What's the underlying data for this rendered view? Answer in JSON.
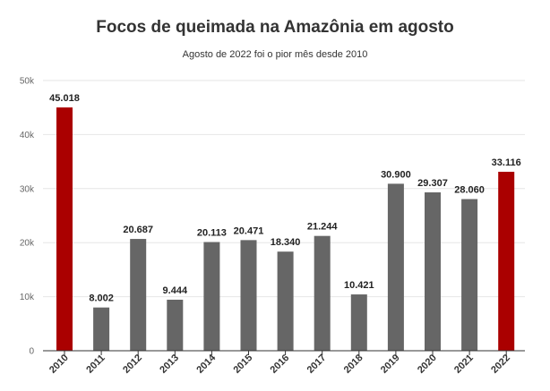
{
  "title": "Focos de queimada na Amazônia em agosto",
  "subtitle": "Agosto de 2022 foi o pior mês desde 2010",
  "chart_data": {
    "type": "bar",
    "title": "Focos de queimada na Amazônia em agosto",
    "subtitle": "Agosto de 2022 foi o pior mês desde 2010",
    "xlabel": "",
    "ylabel": "",
    "ylim": [
      0,
      50000
    ],
    "yticks": [
      {
        "value": 0,
        "label": "0"
      },
      {
        "value": 10000,
        "label": "10k"
      },
      {
        "value": 20000,
        "label": "20k"
      },
      {
        "value": 30000,
        "label": "30k"
      },
      {
        "value": 40000,
        "label": "40k"
      },
      {
        "value": 50000,
        "label": "50k"
      }
    ],
    "categories": [
      "2010",
      "2011",
      "2012",
      "2013",
      "2014",
      "2015",
      "2016",
      "2017",
      "2018",
      "2019",
      "2020",
      "2021",
      "2022"
    ],
    "values": [
      45018,
      8002,
      20687,
      9444,
      20113,
      20471,
      18340,
      21244,
      10421,
      30900,
      29307,
      28060,
      33116
    ],
    "value_labels": [
      "45.018",
      "8.002",
      "20.687",
      "9.444",
      "20.113",
      "20.471",
      "18.340",
      "21.244",
      "10.421",
      "30.900",
      "29.307",
      "28.060",
      "33.116"
    ],
    "highlight_categories": [
      "2010",
      "2022"
    ],
    "colors": {
      "default": "#666666",
      "highlight": "#aa0000",
      "grid": "#e6e6e6",
      "baseline": "#333333"
    },
    "grid": true,
    "legend": "none"
  }
}
